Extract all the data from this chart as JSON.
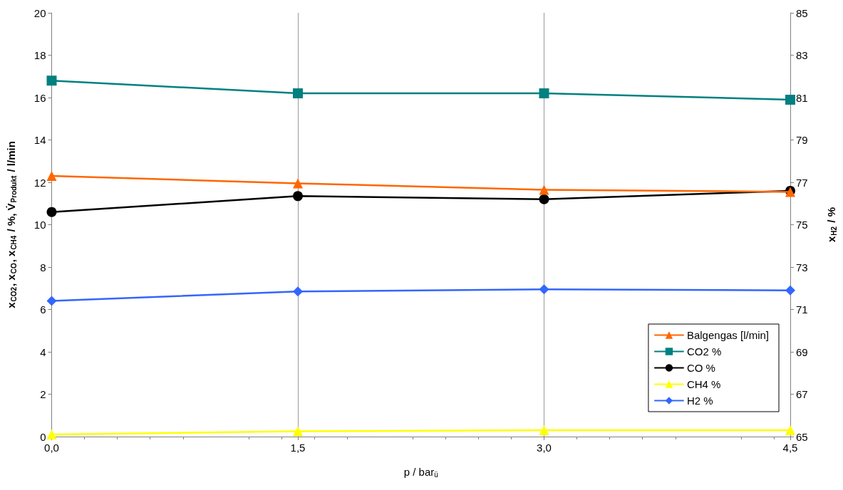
{
  "chart_data": {
    "type": "line",
    "x": [
      0,
      1.5,
      3.0,
      4.5
    ],
    "xlabel": "p / bar$_{ü}$",
    "ylabel": "x$_{CO2}$, x$_{CO}$, x$_{CH4}$ / %, V̇$_{Produkt}$ / l/min",
    "y2label": "x$_{H2}$ / %",
    "xlim": [
      0,
      4.5
    ],
    "xticks": [
      {
        "value": 0,
        "label": "0,0"
      },
      {
        "value": 1.5,
        "label": "1,5"
      },
      {
        "value": 3,
        "label": "3,0"
      },
      {
        "value": 4.5,
        "label": "4,5"
      }
    ],
    "ylim": [
      0,
      20
    ],
    "yticks": [
      0,
      2,
      4,
      6,
      8,
      10,
      12,
      14,
      16,
      18,
      20
    ],
    "y2lim": [
      65,
      85
    ],
    "y2ticks": [
      65,
      67,
      69,
      71,
      73,
      75,
      77,
      79,
      81,
      83,
      85
    ],
    "grid": "x",
    "legend": "bottom right",
    "line_style": "solid",
    "series": [
      {
        "name": "Balgengas [l/min]",
        "color": "#ff6600",
        "marker": "triangle",
        "values": [
          12.3,
          11.95,
          11.65,
          11.55
        ]
      },
      {
        "name": "CO2 %",
        "color": "#008080",
        "marker": "square",
        "values": [
          16.8,
          16.2,
          16.2,
          15.9
        ]
      },
      {
        "name": "CO %",
        "color": "#000000",
        "marker": "circle",
        "values": [
          10.6,
          11.35,
          11.2,
          11.6
        ]
      },
      {
        "name": "CH4 %",
        "color": "#ffff00",
        "marker": "triangle",
        "values": [
          0.1,
          0.25,
          0.3,
          0.3
        ]
      },
      {
        "name": "H2 %",
        "color": "#3366ff",
        "marker": "diamond",
        "axis": "y2",
        "values": [
          71.4,
          71.85,
          71.95,
          71.9
        ]
      }
    ]
  }
}
